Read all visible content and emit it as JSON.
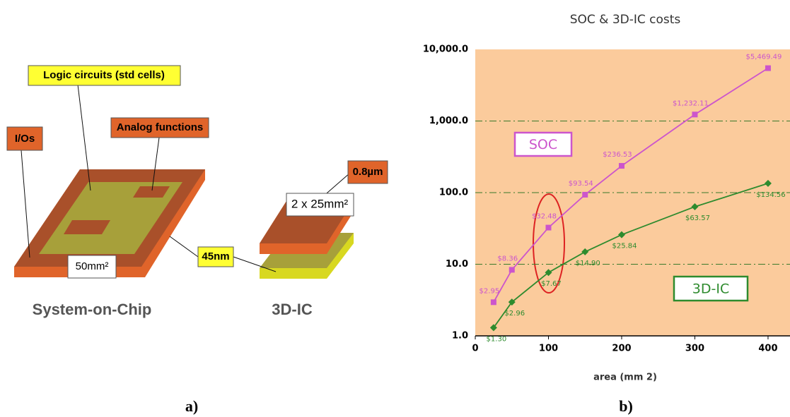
{
  "diagram": {
    "logic_label": "Logic circuits (std cells)",
    "analog_label": "Analog functions",
    "io_label": "I/Os",
    "soc_area": "50mm²",
    "node_45": "45nm",
    "node_08": "0.8µm",
    "die_area": "2 x 25mm²",
    "soc_caption": "System-on-Chip",
    "ic_caption": "3D-IC"
  },
  "captions": [
    "a)",
    "b)"
  ],
  "chart_data": {
    "type": "line",
    "title": "SOC & 3D-IC costs",
    "x_label": "area (mm 2)",
    "log_y": true,
    "grid": true,
    "xlim": [
      0,
      430
    ],
    "xticks": [
      0,
      100,
      200,
      300,
      400
    ],
    "ylim": [
      1,
      10000
    ],
    "yticks": [
      {
        "value": 1,
        "label": "1.0"
      },
      {
        "value": 10,
        "label": "10.0"
      },
      {
        "value": 100,
        "label": "100.0"
      },
      {
        "value": 1000,
        "label": "1,000.0"
      },
      {
        "value": 10000,
        "label": "10,000.0"
      }
    ],
    "x": [
      25,
      50,
      100,
      150,
      200,
      300,
      400
    ],
    "series": [
      {
        "name": "SOC",
        "color": "#cc55cc",
        "marker": "square",
        "values": [
          2.95,
          8.36,
          32.48,
          93.54,
          236.53,
          1232.11,
          5469.49
        ],
        "value_labels": [
          "$2.95",
          "$8.36",
          "$32.48",
          "$93.54",
          "$236.53",
          "$1,232.11",
          "$5,469.49"
        ]
      },
      {
        "name": "3D-IC",
        "color": "#2e8b2e",
        "marker": "diamond",
        "values": [
          1.3,
          2.96,
          7.67,
          14.9,
          25.84,
          63.57,
          134.56
        ],
        "value_labels": [
          "$1.30",
          "$2.96",
          "$7.67",
          "$14.90",
          "$25.84",
          "$63.57",
          "$134.56"
        ]
      }
    ]
  }
}
